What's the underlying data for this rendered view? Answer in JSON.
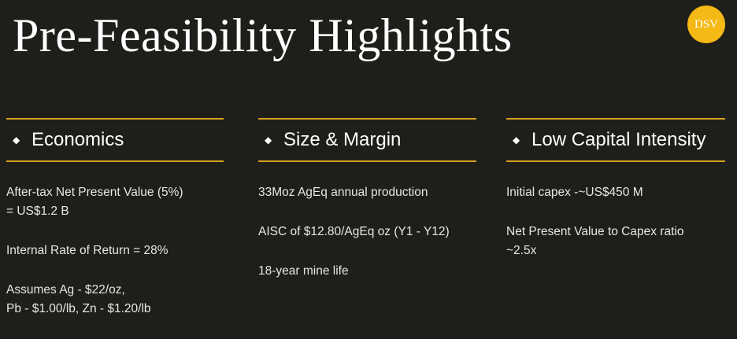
{
  "header": {
    "title": "Pre-Feasibility Highlights",
    "logo": "DSV"
  },
  "columns": [
    {
      "heading": "Economics",
      "items": [
        [
          "After-tax Net Present Value (5%)",
          "= US$1.2 B"
        ],
        [
          "Internal Rate of Return = 28%"
        ],
        [
          "Assumes Ag - $22/oz,",
          "Pb - $1.00/lb, Zn - $1.20/lb"
        ]
      ]
    },
    {
      "heading": "Size & Margin",
      "items": [
        [
          "33Moz AgEq annual production"
        ],
        [
          "AISC of $12.80/AgEq oz (Y1 - Y12)"
        ],
        [
          "18-year mine life"
        ]
      ]
    },
    {
      "heading": "Low Capital Intensity",
      "items": [
        [
          "Initial capex -~US$450 M"
        ],
        [
          "Net Present Value to Capex ratio",
          "~2.5x"
        ]
      ]
    }
  ]
}
